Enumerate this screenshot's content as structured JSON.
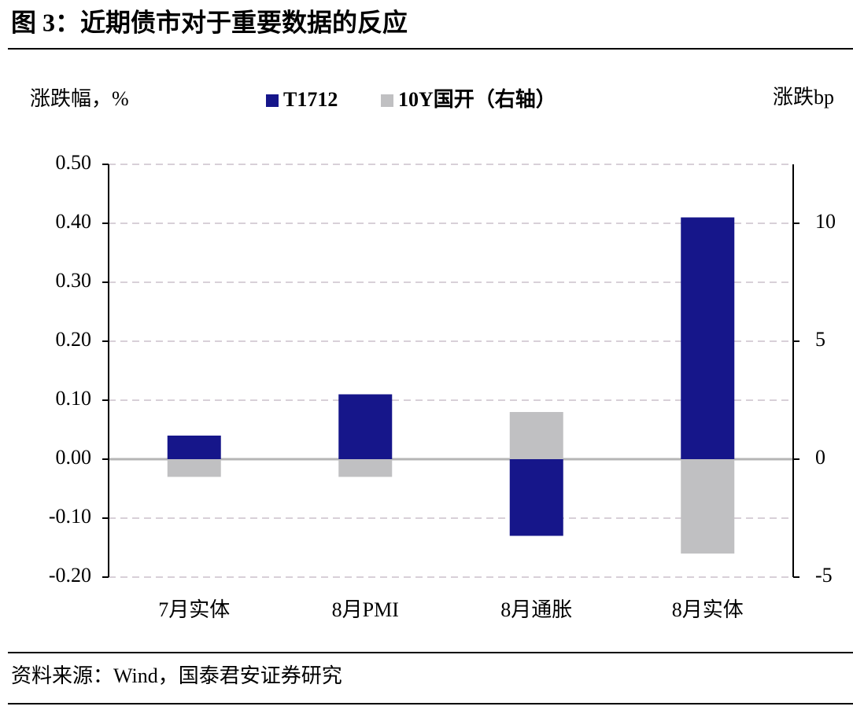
{
  "chart_data": {
    "type": "bar",
    "title": "图 3：近期债市对于重要数据的反应",
    "ylabel": "涨跌幅，%",
    "y2label": "涨跌bp",
    "source": "资料来源：Wind，国泰君安证券研究",
    "categories": [
      "7月实体",
      "8月PMI",
      "8月通胀",
      "8月实体"
    ],
    "series": [
      {
        "name": "T1712",
        "color": "#16168a",
        "values": [
          0.04,
          0.11,
          -0.13,
          0.41
        ]
      },
      {
        "name": "10Y国开（右轴）",
        "color": "#c0c0c2",
        "axis": "y2",
        "values": [
          -0.75,
          -0.75,
          2,
          -4
        ]
      }
    ],
    "ylim": [
      -0.2,
      0.5
    ],
    "yticks": [
      {
        "value": -0.2,
        "label": "-0.20"
      },
      {
        "value": -0.1,
        "label": "-0.10"
      },
      {
        "value": 0,
        "label": "0.00"
      },
      {
        "value": 0.1,
        "label": "0.10"
      },
      {
        "value": 0.2,
        "label": "0.20"
      },
      {
        "value": 0.3,
        "label": "0.30"
      },
      {
        "value": 0.4,
        "label": "0.40"
      },
      {
        "value": 0.5,
        "label": "0.50"
      }
    ],
    "y2lim": [
      -5,
      12.5
    ],
    "y2ticks": [
      -5,
      0,
      5,
      10
    ],
    "grid": true
  }
}
